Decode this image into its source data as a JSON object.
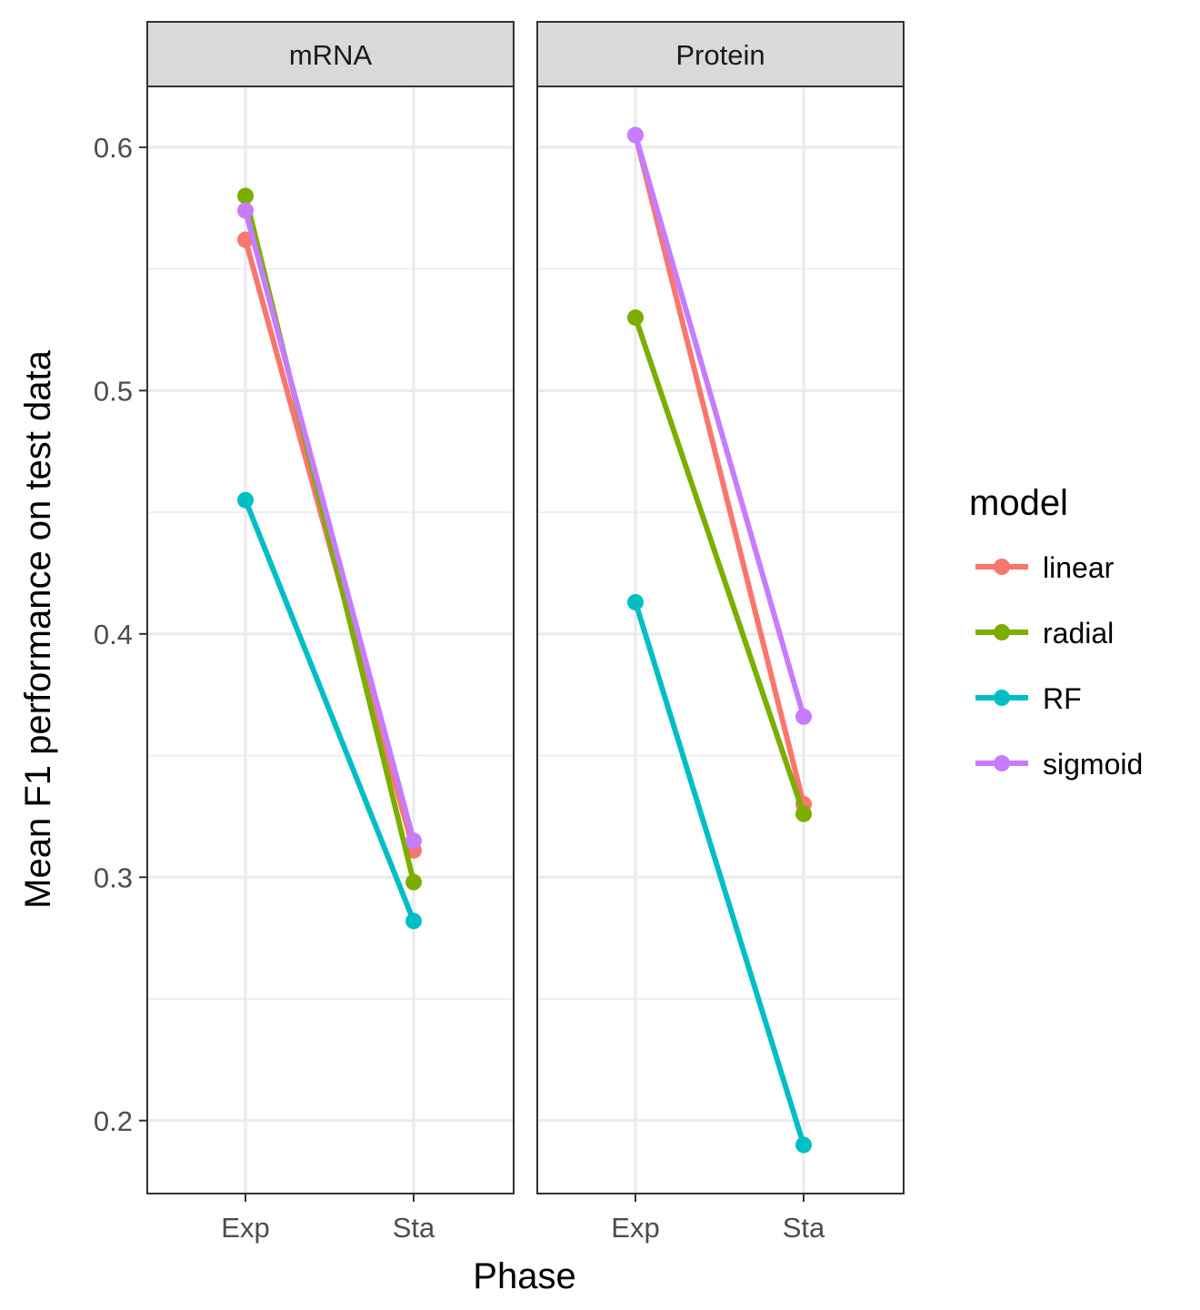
{
  "chart_data": {
    "type": "line",
    "xlabel": "Phase",
    "ylabel": "Mean F1 performance on test data",
    "x": [
      "Exp",
      "Sta"
    ],
    "ylim": [
      0.17,
      0.625
    ],
    "y_ticks": [
      0.2,
      0.3,
      0.4,
      0.5,
      0.6
    ],
    "y_tick_labels": [
      "0.2",
      "0.3",
      "0.4",
      "0.5",
      "0.6"
    ],
    "grid": true,
    "legend": {
      "title": "model",
      "placement": "right",
      "entries": [
        "linear",
        "radial",
        "RF",
        "sigmoid"
      ]
    },
    "colors": {
      "linear": "#f8766d",
      "radial": "#7cae00",
      "RF": "#00bfc4",
      "sigmoid": "#c77cff"
    },
    "panels": [
      {
        "label": "mRNA",
        "series": [
          {
            "name": "linear",
            "values": [
              0.562,
              0.311
            ]
          },
          {
            "name": "radial",
            "values": [
              0.58,
              0.298
            ]
          },
          {
            "name": "RF",
            "values": [
              0.455,
              0.282
            ]
          },
          {
            "name": "sigmoid",
            "values": [
              0.574,
              0.315
            ]
          }
        ]
      },
      {
        "label": "Protein",
        "series": [
          {
            "name": "linear",
            "values": [
              0.605,
              0.33
            ]
          },
          {
            "name": "radial",
            "values": [
              0.53,
              0.326
            ]
          },
          {
            "name": "RF",
            "values": [
              0.413,
              0.19
            ]
          },
          {
            "name": "sigmoid",
            "values": [
              0.605,
              0.366
            ]
          }
        ]
      }
    ]
  }
}
